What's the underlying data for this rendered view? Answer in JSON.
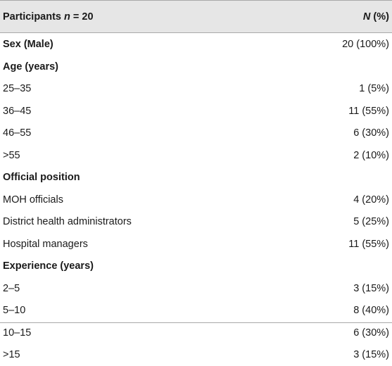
{
  "header": {
    "participants_label": "Participants ",
    "participants_var": "n",
    "participants_eq": " = 20",
    "n_var": "N",
    "n_pct": " (%)"
  },
  "rows": [
    {
      "label": "Sex (Male)",
      "value": "20 (100%)",
      "section": true
    },
    {
      "label": "Age (years)",
      "value": "",
      "section": true
    },
    {
      "label": "25–35",
      "value": "1 (5%)",
      "section": false
    },
    {
      "label": "36–45",
      "value": "11 (55%)",
      "section": false
    },
    {
      "label": "46–55",
      "value": "6 (30%)",
      "section": false
    },
    {
      "label": ">55",
      "value": "2 (10%)",
      "section": false
    },
    {
      "label": "Official position",
      "value": "",
      "section": true
    },
    {
      "label": "MOH officials",
      "value": "4 (20%)",
      "section": false
    },
    {
      "label": "District health administrators",
      "value": "5 (25%)",
      "section": false
    },
    {
      "label": "Hospital managers",
      "value": "11 (55%)",
      "section": false
    },
    {
      "label": "Experience (years)",
      "value": "",
      "section": true
    },
    {
      "label": "2–5",
      "value": "3 (15%)",
      "section": false
    },
    {
      "label": "5–10",
      "value": "8 (40%)",
      "section": false
    },
    {
      "label": "10–15",
      "value": "6 (30%)",
      "section": false
    },
    {
      "label": ">15",
      "value": "3 (15%)",
      "section": false
    }
  ]
}
